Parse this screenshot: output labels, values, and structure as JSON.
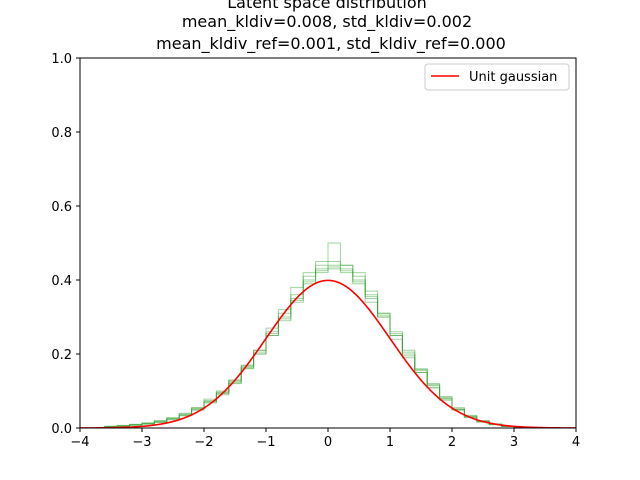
{
  "chart_data": {
    "type": "line",
    "title": [
      "Latent space distribution",
      "mean_kldiv=0.008, std_kldiv=0.002",
      "mean_kldiv_ref=0.001, std_kldiv_ref=0.000"
    ],
    "xlabel": "",
    "ylabel": "",
    "xlim": [
      -4,
      4
    ],
    "ylim": [
      0,
      1.0
    ],
    "xticks": [
      -4,
      -3,
      -2,
      -1,
      0,
      1,
      2,
      3,
      4
    ],
    "xtick_labels": [
      "−4",
      "−3",
      "−2",
      "−1",
      "0",
      "1",
      "2",
      "3",
      "4"
    ],
    "yticks": [
      0.0,
      0.2,
      0.4,
      0.6,
      0.8,
      1.0
    ],
    "ytick_labels": [
      "0.0",
      "0.2",
      "0.4",
      "0.6",
      "0.8",
      "1.0"
    ],
    "grid": false,
    "legend": {
      "position": "top-right",
      "entries": [
        {
          "label": "Unit gaussian",
          "color": "#ff0000"
        }
      ]
    },
    "curve": {
      "name": "Unit gaussian",
      "type": "normal-pdf",
      "mean": 0,
      "std": 1,
      "color": "#ff0000"
    },
    "histograms": {
      "type": "step",
      "color": "#2ca02c",
      "bin_edges": [
        -3.6,
        -3.4,
        -3.2,
        -3.0,
        -2.8,
        -2.6,
        -2.4,
        -2.2,
        -2.0,
        -1.8,
        -1.6,
        -1.4,
        -1.2,
        -1.0,
        -0.8,
        -0.6,
        -0.4,
        -0.2,
        0.0,
        0.2,
        0.4,
        0.6,
        0.8,
        1.0,
        1.2,
        1.4,
        1.6,
        1.8,
        2.0,
        2.2,
        2.4,
        2.6,
        2.8,
        3.0,
        3.2
      ],
      "series": [
        {
          "values": [
            0.004,
            0.006,
            0.008,
            0.012,
            0.018,
            0.024,
            0.036,
            0.052,
            0.072,
            0.095,
            0.125,
            0.165,
            0.205,
            0.255,
            0.3,
            0.35,
            0.4,
            0.43,
            0.44,
            0.43,
            0.4,
            0.355,
            0.305,
            0.255,
            0.2,
            0.155,
            0.115,
            0.08,
            0.05,
            0.03,
            0.018,
            0.01,
            0.005,
            0.002
          ]
        },
        {
          "values": [
            0.003,
            0.005,
            0.009,
            0.01,
            0.015,
            0.025,
            0.033,
            0.048,
            0.068,
            0.1,
            0.13,
            0.16,
            0.21,
            0.26,
            0.32,
            0.38,
            0.42,
            0.45,
            0.5,
            0.44,
            0.41,
            0.37,
            0.31,
            0.24,
            0.19,
            0.15,
            0.11,
            0.075,
            0.048,
            0.028,
            0.016,
            0.009,
            0.004,
            0.002
          ]
        },
        {
          "values": [
            0.005,
            0.007,
            0.01,
            0.014,
            0.02,
            0.028,
            0.04,
            0.055,
            0.078,
            0.09,
            0.12,
            0.17,
            0.2,
            0.25,
            0.29,
            0.34,
            0.39,
            0.42,
            0.43,
            0.42,
            0.39,
            0.34,
            0.3,
            0.26,
            0.21,
            0.16,
            0.12,
            0.085,
            0.055,
            0.034,
            0.02,
            0.011,
            0.005,
            0.002
          ]
        },
        {
          "values": [
            0.002,
            0.004,
            0.007,
            0.011,
            0.016,
            0.022,
            0.034,
            0.05,
            0.07,
            0.097,
            0.128,
            0.168,
            0.21,
            0.27,
            0.31,
            0.36,
            0.41,
            0.44,
            0.45,
            0.44,
            0.42,
            0.36,
            0.31,
            0.25,
            0.195,
            0.15,
            0.108,
            0.078,
            0.05,
            0.03,
            0.017,
            0.009,
            0.004,
            0.001
          ]
        },
        {
          "values": [
            0.004,
            0.006,
            0.009,
            0.013,
            0.019,
            0.026,
            0.038,
            0.054,
            0.074,
            0.093,
            0.122,
            0.162,
            0.2,
            0.25,
            0.295,
            0.345,
            0.395,
            0.425,
            0.435,
            0.425,
            0.395,
            0.35,
            0.3,
            0.25,
            0.205,
            0.158,
            0.118,
            0.082,
            0.052,
            0.032,
            0.019,
            0.01,
            0.005,
            0.002
          ]
        }
      ]
    }
  }
}
